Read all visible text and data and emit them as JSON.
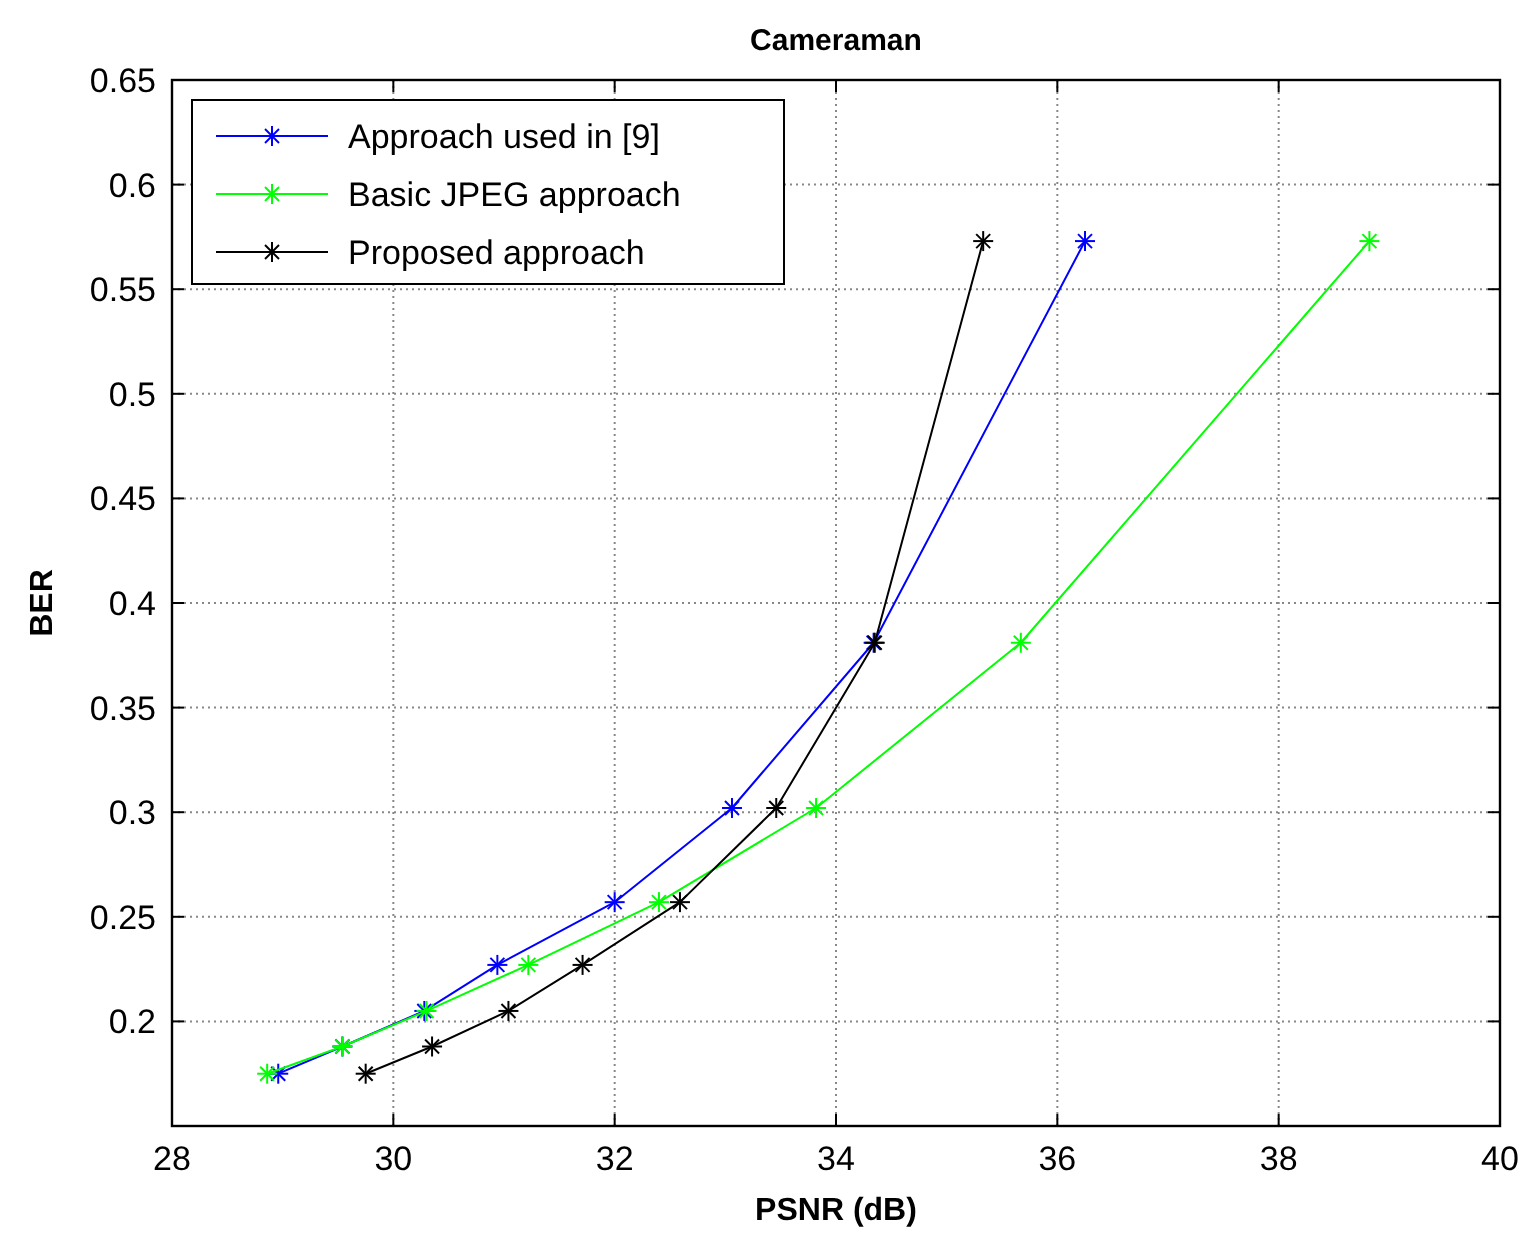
{
  "chart_data": {
    "type": "line",
    "title": "Cameraman",
    "xlabel": "PSNR (dB)",
    "ylabel": "BER",
    "xlim": [
      28,
      40
    ],
    "xticks": [
      28,
      30,
      32,
      34,
      36,
      38,
      40
    ],
    "ylim": [
      0.15,
      0.65
    ],
    "yticks": [
      {
        "value": 0.15,
        "label": null
      },
      0.2,
      0.25,
      0.3,
      0.35,
      0.4,
      0.45,
      0.5,
      0.55,
      0.6,
      0.65
    ],
    "grid": true,
    "legend": "top left",
    "marker": "cross",
    "line_style": "solid",
    "series": [
      {
        "name": "Approach used in [9]",
        "color": "#0000ff",
        "x": [
          28.96,
          29.54,
          30.28,
          30.94,
          32.0,
          33.06,
          34.34,
          36.25
        ],
        "values": [
          0.175,
          0.188,
          0.205,
          0.227,
          0.257,
          0.302,
          0.381,
          0.573
        ]
      },
      {
        "name": "Basic JPEG approach",
        "color": "#00ff00",
        "x": [
          28.86,
          29.54,
          30.3,
          31.22,
          32.4,
          33.82,
          35.67,
          38.82
        ],
        "values": [
          0.175,
          0.188,
          0.205,
          0.227,
          0.257,
          0.302,
          0.381,
          0.573
        ]
      },
      {
        "name": "Proposed approach",
        "color": "#000000",
        "x": [
          29.75,
          30.35,
          31.04,
          31.71,
          32.59,
          33.46,
          34.35,
          35.33
        ],
        "values": [
          0.175,
          0.188,
          0.205,
          0.227,
          0.257,
          0.302,
          0.381,
          0.573
        ]
      }
    ]
  }
}
